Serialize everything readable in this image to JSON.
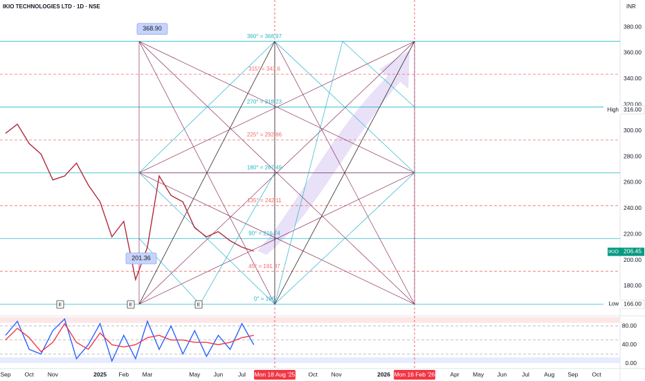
{
  "chart_data": [
    {
      "type": "line",
      "title": "IKIO TECHNOLOGIES LTD · 1D · NSE",
      "currency": "INR",
      "categories": [
        "Sep",
        null,
        "Oct",
        null,
        "Nov",
        null,
        null,
        null,
        "2025",
        null,
        "Feb",
        null,
        "Mar",
        null,
        null,
        null,
        "May",
        null,
        "Jun",
        null,
        "Jul",
        null,
        null,
        null,
        null,
        null,
        "Oct",
        null,
        "Nov",
        null,
        null,
        null,
        "2026",
        null,
        null,
        null,
        null,
        null,
        "Apr",
        null,
        "May",
        null,
        "Jun",
        null,
        "Jul",
        null,
        "Aug",
        null,
        "Sep",
        null,
        "Oct",
        null
      ],
      "series": [
        {
          "color": "#b2283a",
          "values": [
            298,
            305,
            290,
            282,
            262,
            265,
            275,
            258,
            245,
            218,
            230,
            185,
            210,
            265,
            250,
            245,
            225,
            218,
            222,
            215,
            210,
            207,
            null,
            null,
            null,
            null,
            null,
            null,
            null,
            null,
            null,
            null,
            null,
            null,
            null,
            null,
            null,
            null,
            null,
            null,
            null,
            null,
            null,
            null,
            null,
            null,
            null,
            null,
            null,
            null,
            null,
            null
          ]
        }
      ],
      "ylim": [
        157.5,
        400.9
      ],
      "yticks": [
        {
          "value": 180,
          "label": "180.00"
        },
        {
          "value": 200,
          "label": "200.00"
        },
        {
          "value": 220,
          "label": "220.00"
        },
        {
          "value": 240,
          "label": "240.00"
        },
        {
          "value": 260,
          "label": "260.00"
        },
        {
          "value": 280,
          "label": "280.00"
        },
        {
          "value": 300,
          "label": "300.00"
        },
        {
          "value": 320,
          "label": "320.00"
        },
        {
          "value": 340,
          "label": "340.00"
        },
        {
          "value": 360,
          "label": "360.00"
        },
        {
          "value": 380,
          "label": "380.00"
        }
      ],
      "grid": false,
      "levels": [
        {
          "label": "0° = 166",
          "value": 166,
          "color": "#22b5c9",
          "dashed": false
        },
        {
          "label": "45° = 191.37",
          "value": 191.37,
          "color": "#f06a6a",
          "dashed": true
        },
        {
          "label": "90° = 216.74",
          "value": 216.74,
          "color": "#22b5c9",
          "dashed": false
        },
        {
          "label": "135° = 242.11",
          "value": 242.11,
          "color": "#f06a6a",
          "dashed": true
        },
        {
          "label": "180° = 267.49",
          "value": 267.49,
          "color": "#22b5c9",
          "dashed": false
        },
        {
          "label": "225° = 292.86",
          "value": 292.86,
          "color": "#f06a6a",
          "dashed": true
        },
        {
          "label": "270° = 318.23",
          "value": 318.23,
          "color": "#22b5c9",
          "dashed": false
        },
        {
          "label": "315° = 343.6",
          "value": 343.6,
          "color": "#f06a6a",
          "dashed": true
        },
        {
          "label": "360° = 368.97",
          "value": 368.97,
          "color": "#22b5c9",
          "dashed": false
        }
      ],
      "price_labels": [
        {
          "name": "High",
          "label": "316.00",
          "value": 316,
          "color": "#ffffff"
        },
        {
          "name": "Low",
          "label": "166.00",
          "value": 166,
          "color": "#ffffff"
        },
        {
          "name": "IKIO",
          "label": "206.45",
          "value": 206.45,
          "color": "#089981"
        }
      ],
      "annotations": [
        {
          "label": "368.90",
          "value": 368.9
        },
        {
          "label": "201.36",
          "value": 201.36
        }
      ],
      "events": [
        "E",
        "E",
        "E"
      ],
      "date_markers": [
        "Mon 18 Aug '25",
        "Mon 16 Feb '26"
      ]
    },
    {
      "type": "line",
      "series": [
        {
          "color": "#2962ff",
          "values": [
            60,
            90,
            30,
            20,
            70,
            95,
            10,
            40,
            85,
            5,
            60,
            10,
            90,
            30,
            80,
            20,
            70,
            15,
            60,
            30,
            85,
            40
          ]
        },
        {
          "color": "#f23645",
          "values": [
            50,
            75,
            55,
            25,
            45,
            85,
            45,
            30,
            65,
            40,
            35,
            40,
            55,
            60,
            50,
            50,
            45,
            45,
            40,
            45,
            55,
            60
          ]
        }
      ],
      "ylim": [
        -11,
        98.6
      ],
      "yticks": [
        {
          "value": 0,
          "label": "0.00"
        },
        {
          "value": 40,
          "label": "40.00"
        },
        {
          "value": 80,
          "label": "80.00"
        }
      ],
      "bands": [
        20,
        50,
        80
      ]
    }
  ]
}
